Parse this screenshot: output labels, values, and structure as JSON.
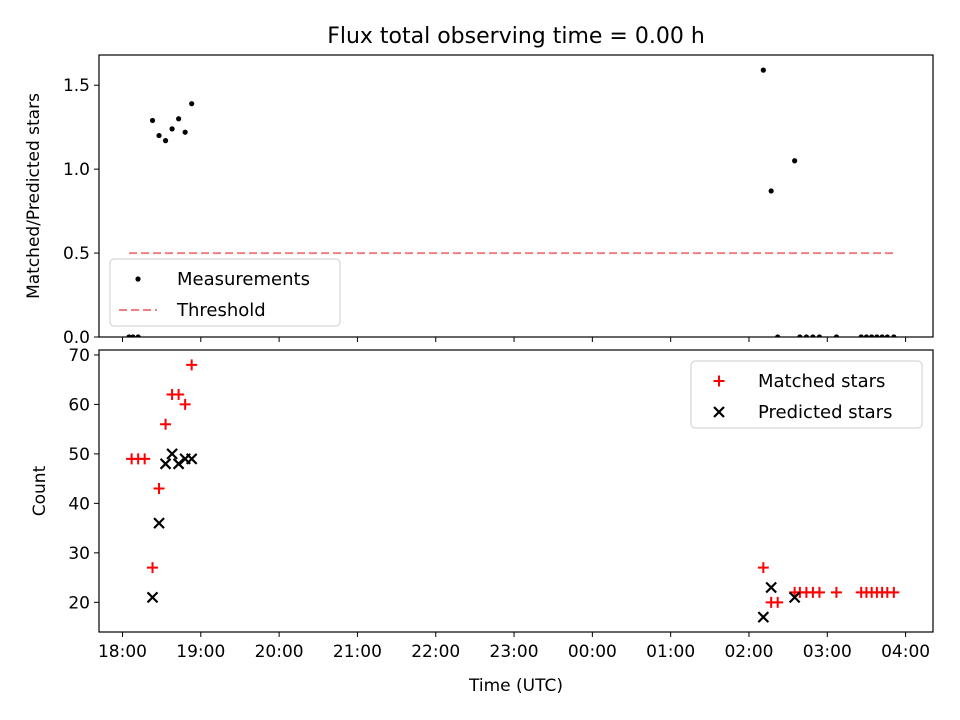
{
  "figure_title": "Flux total observing time = 0.00 h",
  "x_label": "Time (UTC)",
  "x_ticks": [
    "18:00",
    "19:00",
    "20:00",
    "21:00",
    "22:00",
    "23:00",
    "00:00",
    "01:00",
    "02:00",
    "03:00",
    "04:00"
  ],
  "chart_data": [
    {
      "type": "scatter",
      "title": "Flux total observing time = 0.00 h",
      "xlabel": "",
      "ylabel": "Matched/Predicted stars",
      "xlim": [
        "17:42",
        "04:21"
      ],
      "ylim": [
        0,
        1.68
      ],
      "yticks": [
        "0.0",
        "0.5",
        "1.0",
        "1.5"
      ],
      "legend_position": "lower-left",
      "series": [
        {
          "name": "Measurements",
          "kind": "points",
          "color": "#000000",
          "x": [
            "18:05",
            "18:08",
            "18:12",
            "18:23",
            "18:28",
            "18:33",
            "18:38",
            "18:43",
            "18:48",
            "18:53",
            "02:11",
            "02:17",
            "02:22",
            "02:35",
            "02:39",
            "02:44",
            "02:49",
            "02:54",
            "03:07",
            "03:26",
            "03:30",
            "03:34",
            "03:38",
            "03:42",
            "03:46",
            "03:51"
          ],
          "y": [
            0,
            0,
            0,
            1.29,
            1.2,
            1.17,
            1.24,
            1.3,
            1.22,
            1.39,
            1.59,
            0.87,
            0,
            1.05,
            0,
            0,
            0,
            0,
            0,
            0,
            0,
            0,
            0,
            0,
            0,
            0
          ]
        },
        {
          "name": "Threshold",
          "kind": "line",
          "style": "dashed",
          "color": "#f08080",
          "x": [
            "18:05",
            "03:51"
          ],
          "y": [
            0.5,
            0.5
          ]
        }
      ]
    },
    {
      "type": "scatter",
      "title": "",
      "xlabel": "Time (UTC)",
      "ylabel": "Count",
      "xlim": [
        "17:42",
        "04:21"
      ],
      "ylim": [
        14,
        71
      ],
      "yticks": [
        "20",
        "30",
        "40",
        "50",
        "60",
        "70"
      ],
      "legend_position": "upper-right",
      "series": [
        {
          "name": "Matched stars",
          "marker": "plus",
          "color": "#ff0000",
          "x": [
            "18:07",
            "18:12",
            "18:17",
            "18:23",
            "18:28",
            "18:33",
            "18:38",
            "18:43",
            "18:48",
            "18:53",
            "02:11",
            "02:17",
            "02:22",
            "02:35",
            "02:39",
            "02:44",
            "02:49",
            "02:54",
            "03:07",
            "03:26",
            "03:30",
            "03:34",
            "03:38",
            "03:42",
            "03:46",
            "03:51"
          ],
          "y": [
            49,
            49,
            49,
            27,
            43,
            56,
            62,
            62,
            60,
            68,
            27,
            20,
            20,
            22,
            22,
            22,
            22,
            22,
            22,
            22,
            22,
            22,
            22,
            22,
            22,
            22
          ]
        },
        {
          "name": "Predicted stars",
          "marker": "x",
          "color": "#000000",
          "x": [
            "18:23",
            "18:28",
            "18:33",
            "18:38",
            "18:43",
            "18:48",
            "18:53",
            "02:11",
            "02:17",
            "02:35"
          ],
          "y": [
            21,
            36,
            48,
            50,
            48,
            49,
            49,
            17,
            23,
            21
          ]
        }
      ]
    }
  ]
}
